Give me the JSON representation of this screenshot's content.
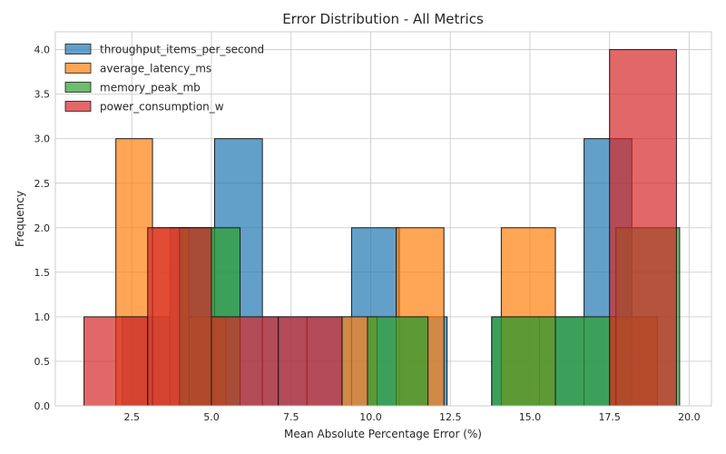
{
  "chart_data": {
    "type": "histogram",
    "title": "Error Distribution - All Metrics",
    "xlabel": "Mean Absolute Percentage Error (%)",
    "ylabel": "Frequency",
    "xlim": [
      0.1,
      20.7
    ],
    "ylim": [
      0,
      4.2
    ],
    "xticks": [
      "2.5",
      "5.0",
      "7.5",
      "10.0",
      "12.5",
      "15.0",
      "17.5",
      "20.0"
    ],
    "yticks": [
      "0.0",
      "0.5",
      "1.0",
      "1.5",
      "2.0",
      "2.5",
      "3.0",
      "3.5",
      "4.0"
    ],
    "grid": true,
    "legend_position": "top-left",
    "series": [
      {
        "name": "throughput_items_per_second",
        "color": "#1f77b4",
        "bins": [
          {
            "x0": 2.2,
            "x1": 3.7,
            "count": 1
          },
          {
            "x0": 3.7,
            "x1": 5.1,
            "count": 2
          },
          {
            "x0": 5.1,
            "x1": 6.6,
            "count": 3
          },
          {
            "x0": 6.6,
            "x1": 8.0,
            "count": 1
          },
          {
            "x0": 8.0,
            "x1": 9.4,
            "count": 1
          },
          {
            "x0": 9.4,
            "x1": 10.9,
            "count": 2
          },
          {
            "x0": 10.9,
            "x1": 12.4,
            "count": 1
          },
          {
            "x0": 12.4,
            "x1": 13.8,
            "count": 0
          },
          {
            "x0": 13.8,
            "x1": 15.3,
            "count": 1
          },
          {
            "x0": 15.3,
            "x1": 16.7,
            "count": 1
          },
          {
            "x0": 16.7,
            "x1": 18.2,
            "count": 3
          }
        ]
      },
      {
        "name": "average_latency_ms",
        "color": "#ff7f0e",
        "bins": [
          {
            "x0": 2.0,
            "x1": 3.15,
            "count": 3
          },
          {
            "x0": 3.15,
            "x1": 4.3,
            "count": 2
          },
          {
            "x0": 4.3,
            "x1": 5.45,
            "count": 1
          },
          {
            "x0": 9.1,
            "x1": 10.2,
            "count": 1
          },
          {
            "x0": 10.8,
            "x1": 12.3,
            "count": 2
          },
          {
            "x0": 14.1,
            "x1": 15.8,
            "count": 2
          },
          {
            "x0": 17.5,
            "x1": 19.0,
            "count": 1
          }
        ]
      },
      {
        "name": "memory_peak_mb",
        "color": "#2ca02c",
        "bins": [
          {
            "x0": 4.0,
            "x1": 5.9,
            "count": 2
          },
          {
            "x0": 9.9,
            "x1": 11.8,
            "count": 1
          },
          {
            "x0": 13.8,
            "x1": 15.8,
            "count": 1
          },
          {
            "x0": 15.8,
            "x1": 17.7,
            "count": 1
          },
          {
            "x0": 17.7,
            "x1": 19.7,
            "count": 2
          }
        ]
      },
      {
        "name": "power_consumption_w",
        "color": "#d62728",
        "bins": [
          {
            "x0": 1.0,
            "x1": 3.0,
            "count": 1
          },
          {
            "x0": 3.0,
            "x1": 5.0,
            "count": 2
          },
          {
            "x0": 5.0,
            "x1": 7.1,
            "count": 1
          },
          {
            "x0": 7.1,
            "x1": 9.1,
            "count": 1
          },
          {
            "x0": 17.5,
            "x1": 19.6,
            "count": 4
          }
        ]
      }
    ]
  }
}
